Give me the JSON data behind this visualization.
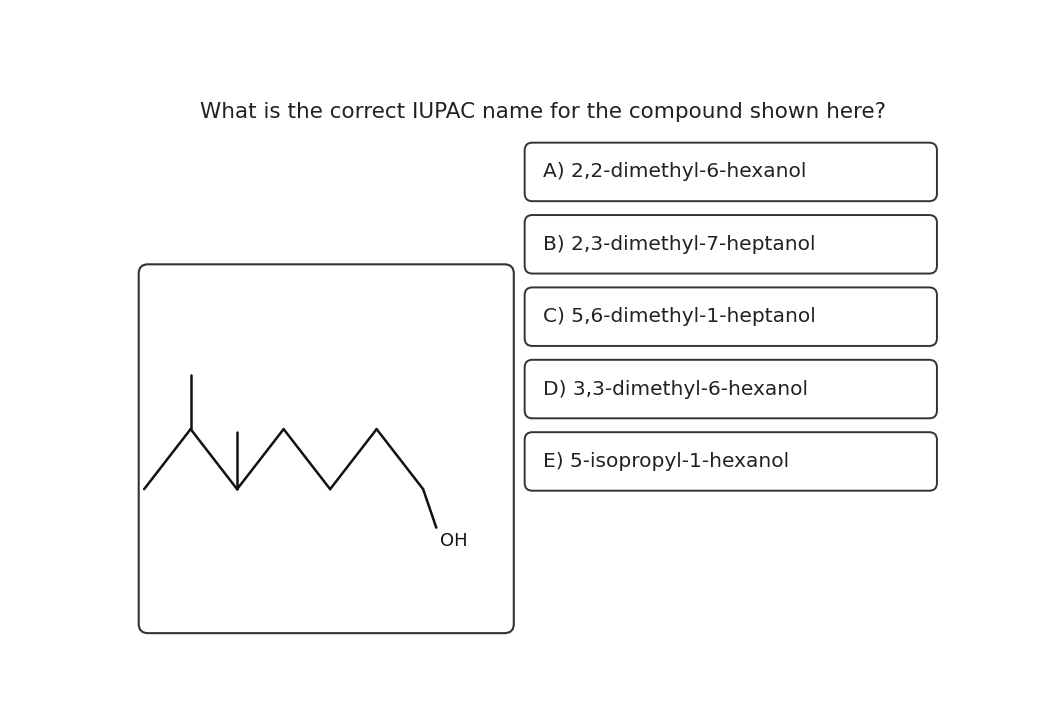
{
  "title": "What is the correct IUPAC name for the compound shown here?",
  "title_fontsize": 15.5,
  "title_color": "#222222",
  "background_color": "#ffffff",
  "options": [
    "A) 2,2-dimethyl-6-hexanol",
    "B) 2,3-dimethyl-7-heptanol",
    "C) 5,6-dimethyl-1-heptanol",
    "D) 3,3-dimethyl-6-hexanol",
    "E) 5-isopropyl-1-hexanol"
  ],
  "option_fontsize": 14.5,
  "line_color": "#111111",
  "line_width": 1.8,
  "oh_fontsize": 13
}
